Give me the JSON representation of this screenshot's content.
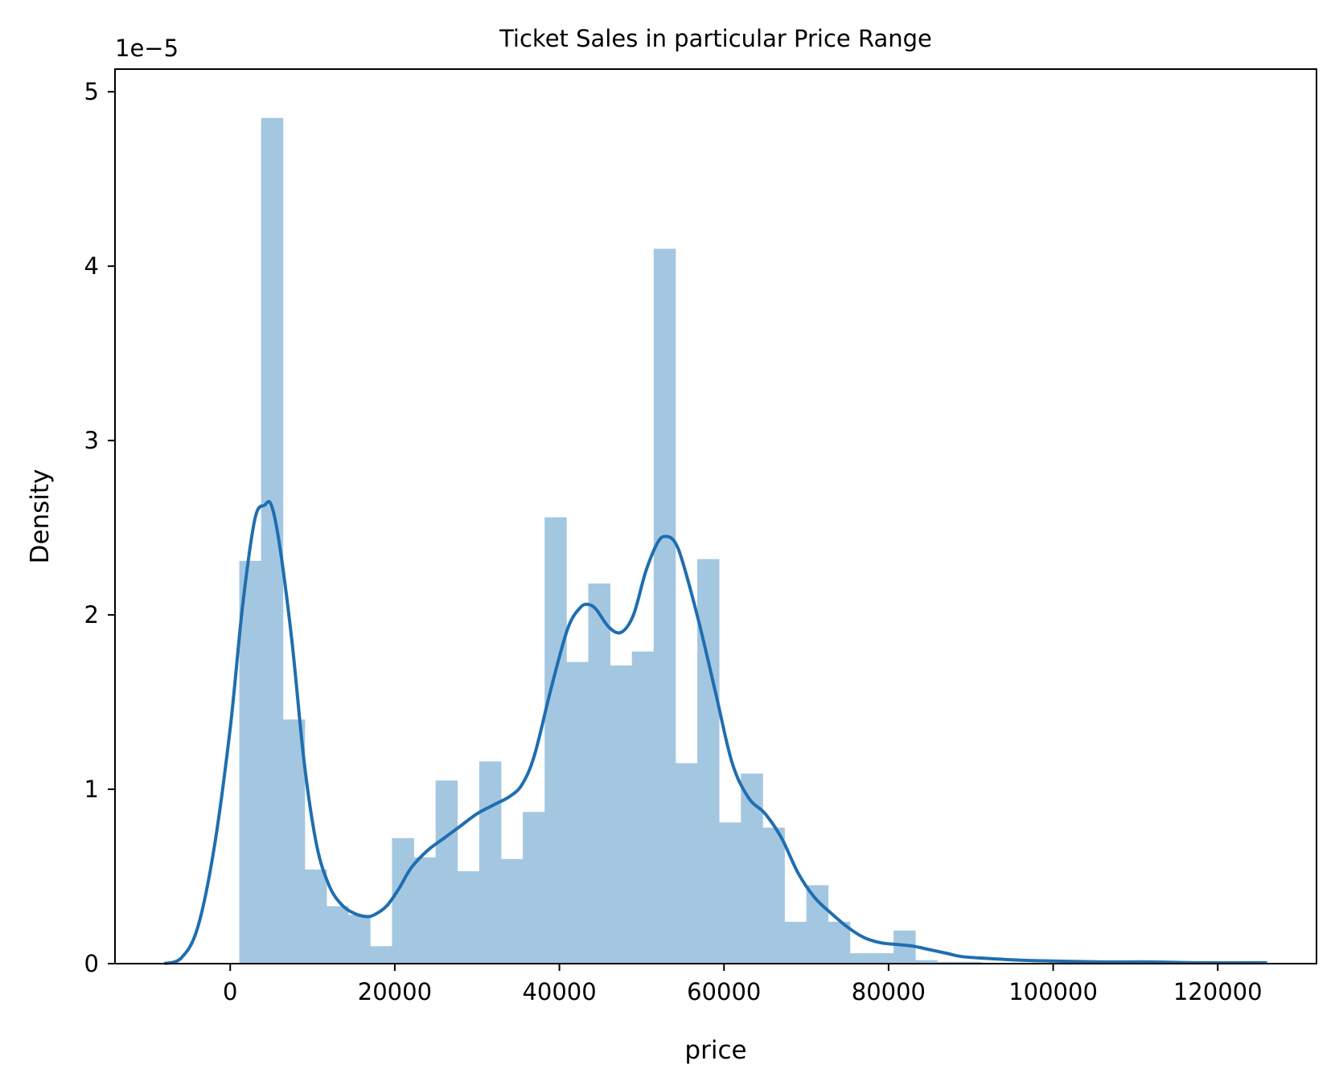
{
  "chart_data": {
    "type": "bar",
    "title": "Ticket Sales in particular Price Range",
    "xlabel": "price",
    "ylabel": "Density",
    "y_offset_label": "1e−5",
    "y_scale": 1e-05,
    "xlim": [
      -14000,
      132000
    ],
    "ylim": [
      0,
      5.13
    ],
    "x_ticks": [
      0,
      20000,
      40000,
      60000,
      80000,
      100000,
      120000
    ],
    "y_ticks": [
      0,
      1,
      2,
      3,
      4,
      5
    ],
    "grid": false,
    "colors": {
      "bars": "#a4c7e1",
      "kde": "#1f6eb0"
    },
    "histogram": {
      "bin_edges": [
        1105,
        3755,
        6405,
        9055,
        11705,
        14355,
        17005,
        19655,
        22305,
        24955,
        27605,
        30255,
        32905,
        35555,
        38205,
        40855,
        43505,
        46155,
        48805,
        51455,
        54105,
        56755,
        59405,
        62055,
        64705,
        67355,
        70005,
        72655,
        75305,
        77955,
        80605,
        83255,
        85905,
        88555,
        91205,
        93855,
        96505,
        99155,
        101805,
        104455,
        107105,
        109755,
        112405,
        115055,
        117705,
        120355,
        123005
      ],
      "density": [
        2.31,
        4.85,
        1.4,
        0.54,
        0.33,
        0.28,
        0.1,
        0.72,
        0.61,
        1.05,
        0.53,
        1.16,
        0.6,
        0.87,
        2.56,
        1.73,
        2.18,
        1.71,
        1.79,
        4.1,
        1.15,
        2.32,
        0.81,
        1.09,
        0.78,
        0.24,
        0.45,
        0.24,
        0.06,
        0.06,
        0.19,
        0.02,
        0.01,
        0.01,
        0.005,
        0.004,
        0.003,
        0.003,
        0.002,
        0.002,
        0.002,
        0.001,
        0.001,
        0.001,
        0.001,
        0.001
      ]
    },
    "kde": {
      "x": [
        -8000,
        -6000,
        -4000,
        -2000,
        0,
        1500,
        3000,
        4200,
        5000,
        6000,
        7500,
        9000,
        10500,
        12000,
        13500,
        15000,
        16500,
        17500,
        19000,
        20500,
        22000,
        24000,
        26000,
        28000,
        30000,
        32000,
        34000,
        35500,
        37000,
        39000,
        41000,
        42500,
        43500,
        44500,
        46000,
        47500,
        49000,
        50500,
        52000,
        53000,
        54000,
        55000,
        57000,
        59000,
        61000,
        63000,
        65000,
        67000,
        69000,
        71000,
        73000,
        75000,
        77000,
        79000,
        81000,
        83000,
        85000,
        87000,
        89000,
        92000,
        96000,
        100000,
        106000,
        112000,
        118000,
        126000
      ],
      "y": [
        0.0,
        0.03,
        0.2,
        0.65,
        1.35,
        2.05,
        2.55,
        2.63,
        2.63,
        2.4,
        1.85,
        1.15,
        0.68,
        0.45,
        0.34,
        0.29,
        0.27,
        0.28,
        0.33,
        0.43,
        0.55,
        0.65,
        0.72,
        0.79,
        0.86,
        0.91,
        0.96,
        1.03,
        1.2,
        1.58,
        1.92,
        2.04,
        2.06,
        2.03,
        1.93,
        1.9,
        2.0,
        2.25,
        2.42,
        2.45,
        2.42,
        2.3,
        1.95,
        1.55,
        1.15,
        0.95,
        0.86,
        0.72,
        0.52,
        0.38,
        0.29,
        0.21,
        0.15,
        0.12,
        0.11,
        0.1,
        0.08,
        0.06,
        0.04,
        0.03,
        0.02,
        0.015,
        0.01,
        0.01,
        0.005,
        0.005
      ]
    }
  }
}
